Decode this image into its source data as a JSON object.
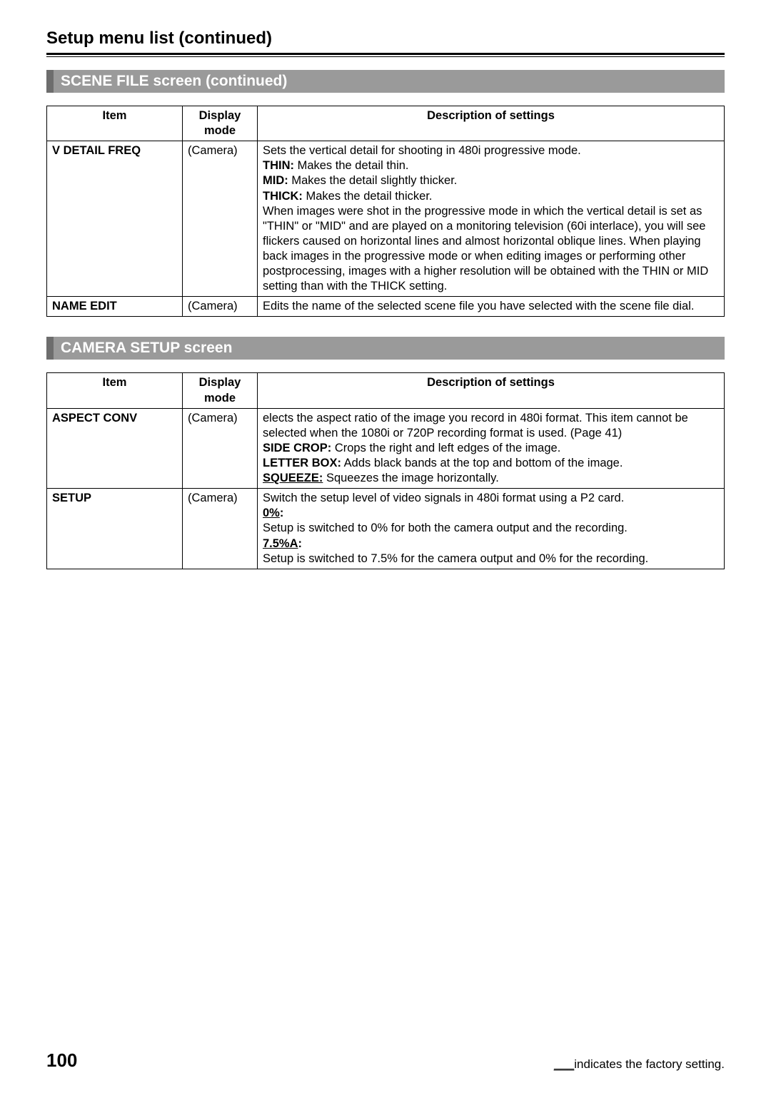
{
  "page": {
    "title": "Setup menu list (continued)",
    "number": "100",
    "footer_blank": "___",
    "footer_text": "indicates the factory setting."
  },
  "sections": [
    {
      "header": "SCENE FILE screen (continued)",
      "columns": {
        "item": "Item",
        "mode": "Display mode",
        "desc": "Description of settings"
      },
      "rows": [
        {
          "item": "V DETAIL FREQ",
          "mode": "(Camera)",
          "desc": {
            "intro": "Sets the vertical detail for shooting in 480i progressive mode.",
            "thin_label": "THIN:",
            "thin_text": " Makes the detail thin.",
            "mid_label": "MID:",
            "mid_text": " Makes the detail slightly thicker.",
            "thick_label": "THICK:",
            "thick_text": " Makes the detail thicker.",
            "para": "When images were shot in the progressive mode in which the vertical detail is set as \"THIN\" or \"MID\" and are played on a monitoring television (60i interlace), you will see flickers caused on horizontal lines and almost horizontal oblique lines. When playing back images in the progressive mode or when editing images or performing other postprocessing, images with a higher resolution will be obtained with the THIN or MID setting than with the THICK setting."
          }
        },
        {
          "item": "NAME EDIT",
          "mode": "(Camera)",
          "desc": {
            "text": "Edits the name of the selected scene file you have selected with the scene file dial."
          }
        }
      ]
    },
    {
      "header": "CAMERA SETUP screen",
      "columns": {
        "item": "Item",
        "mode": "Display mode",
        "desc": "Description of settings"
      },
      "rows": [
        {
          "item": "ASPECT CONV",
          "mode": "(Camera)",
          "desc": {
            "intro": "elects the aspect ratio of the image you record in 480i format. This item cannot be selected when the 1080i or 720P recording format is used. (Page 41)",
            "side_label": "SIDE CROP:",
            "side_text": " Crops the right and left edges of the image.",
            "letter_label": "LETTER BOX:",
            "letter_text": " Adds black bands at the top and bottom of the image.",
            "squeeze_label": "SQUEEZE:",
            "squeeze_text": " Squeezes the image horizontally."
          }
        },
        {
          "item": "SETUP",
          "mode": "(Camera)",
          "desc": {
            "intro": "Switch the setup level of video signals in 480i format using a P2 card.",
            "zero_label": "0%",
            "zero_colon": ":",
            "zero_text": "Setup is switched to 0% for both the camera output and the recording.",
            "seven_label": "7.5%A",
            "seven_colon": ":",
            "seven_text": "Setup is switched to 7.5% for the camera output and 0% for the recording."
          }
        }
      ]
    }
  ]
}
